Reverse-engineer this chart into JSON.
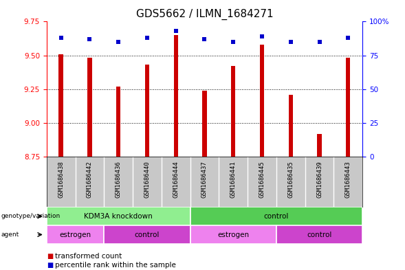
{
  "title": "GDS5662 / ILMN_1684271",
  "samples": [
    "GSM1686438",
    "GSM1686442",
    "GSM1686436",
    "GSM1686440",
    "GSM1686444",
    "GSM1686437",
    "GSM1686441",
    "GSM1686445",
    "GSM1686435",
    "GSM1686439",
    "GSM1686443"
  ],
  "transformed_counts": [
    9.51,
    9.48,
    9.27,
    9.43,
    9.65,
    9.24,
    9.42,
    9.58,
    9.21,
    8.92,
    9.48
  ],
  "percentile_ranks": [
    88,
    87,
    85,
    88,
    93,
    87,
    85,
    89,
    85,
    85,
    88
  ],
  "ylim_left": [
    8.75,
    9.75
  ],
  "ylim_right": [
    0,
    100
  ],
  "yticks_left": [
    8.75,
    9.0,
    9.25,
    9.5,
    9.75
  ],
  "yticks_right": [
    0,
    25,
    50,
    75,
    100
  ],
  "ytick_labels_right": [
    "0",
    "25",
    "50",
    "75",
    "100%"
  ],
  "bar_color": "#cc0000",
  "dot_color": "#0000cc",
  "bar_bottom": 8.75,
  "bar_width": 0.15,
  "genotype_groups": [
    {
      "label": "KDM3A knockdown",
      "start": 0,
      "end": 5,
      "color": "#90ee90"
    },
    {
      "label": "control",
      "start": 5,
      "end": 11,
      "color": "#55cc55"
    }
  ],
  "agent_groups": [
    {
      "label": "estrogen",
      "start": 0,
      "end": 2,
      "color": "#ee82ee"
    },
    {
      "label": "control",
      "start": 2,
      "end": 5,
      "color": "#cc44cc"
    },
    {
      "label": "estrogen",
      "start": 5,
      "end": 8,
      "color": "#ee82ee"
    },
    {
      "label": "control",
      "start": 8,
      "end": 11,
      "color": "#cc44cc"
    }
  ],
  "legend_items": [
    {
      "label": "transformed count",
      "color": "#cc0000"
    },
    {
      "label": "percentile rank within the sample",
      "color": "#0000cc"
    }
  ],
  "background_color": "#ffffff",
  "sample_label_bg": "#c8c8c8",
  "grid_color": "#000000",
  "tick_fontsize": 7.5,
  "title_fontsize": 11,
  "label_fontsize": 7.5,
  "sample_fontsize": 6.5,
  "legend_fontsize": 7.5
}
